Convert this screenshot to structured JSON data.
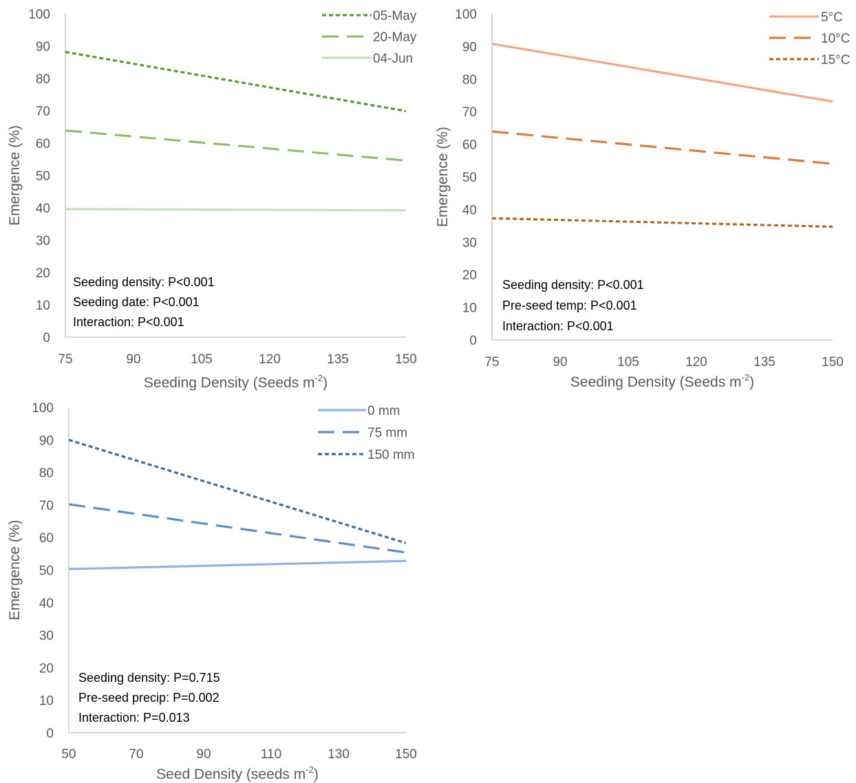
{
  "chart_data": [
    {
      "type": "line",
      "title": "",
      "xlabel_main": "Seeding Density (Seeds m",
      "xlabel_sup": "-2",
      "xlabel_tail": ")",
      "ylabel": "Emergence (%)",
      "xlim": [
        75,
        150
      ],
      "ylim": [
        0,
        100
      ],
      "xticks": [
        "75",
        "90",
        "105",
        "120",
        "135",
        "150"
      ],
      "yticks": [
        "0",
        "10",
        "20",
        "30",
        "40",
        "50",
        "60",
        "70",
        "80",
        "90",
        "100"
      ],
      "grid": false,
      "legend": "top-right",
      "series": [
        {
          "name": "05-May",
          "x": [
            75,
            150
          ],
          "values": [
            88.2,
            69.9
          ],
          "color": "#5b9a2e",
          "dash": "dot"
        },
        {
          "name": "20-May",
          "x": [
            75,
            150
          ],
          "values": [
            63.9,
            54.6
          ],
          "color": "#8fbf6a",
          "dash": "dash"
        },
        {
          "name": "04-Jun",
          "x": [
            75,
            150
          ],
          "values": [
            39.6,
            39.2
          ],
          "color": "#c5e0b4",
          "dash": "solid"
        }
      ],
      "annotations": [
        "Seeding density: P<0.001",
        "Seeding date: P<0.001",
        "Interaction: P<0.001"
      ]
    },
    {
      "type": "line",
      "title": "",
      "xlabel_main": "Seeding Density (Seeds m",
      "xlabel_sup": "-2",
      "xlabel_tail": ")",
      "ylabel": "Emergence (%)",
      "xlim": [
        75,
        150
      ],
      "ylim": [
        0,
        100
      ],
      "xticks": [
        "75",
        "90",
        "105",
        "120",
        "135",
        "150"
      ],
      "yticks": [
        "0",
        "10",
        "20",
        "30",
        "40",
        "50",
        "60",
        "70",
        "80",
        "90",
        "100"
      ],
      "grid": false,
      "legend": "top-right",
      "series": [
        {
          "name": "5°C",
          "x": [
            75,
            150
          ],
          "values": [
            90.8,
            73.1
          ],
          "color": "#f4a582",
          "dash": "solid"
        },
        {
          "name": "10°C",
          "x": [
            75,
            150
          ],
          "values": [
            63.9,
            54.0
          ],
          "color": "#e07b39",
          "dash": "dash"
        },
        {
          "name": "15°C",
          "x": [
            75,
            150
          ],
          "values": [
            37.3,
            34.7
          ],
          "color": "#b5651d",
          "dash": "dot"
        }
      ],
      "annotations": [
        "Seeding density: P<0.001",
        "Pre-seed temp: P<0.001",
        "Interaction: P<0.001"
      ]
    },
    {
      "type": "line",
      "title": "",
      "xlabel_main": "Seed Density (seeds m",
      "xlabel_sup": "-2",
      "xlabel_tail": ")",
      "ylabel": "Emergence (%)",
      "xlim": [
        50,
        150
      ],
      "ylim": [
        0,
        100
      ],
      "xticks": [
        "50",
        "70",
        "90",
        "110",
        "130",
        "150"
      ],
      "yticks": [
        "0",
        "10",
        "20",
        "30",
        "40",
        "50",
        "60",
        "70",
        "80",
        "90",
        "100"
      ],
      "grid": false,
      "legend": "top-right",
      "series": [
        {
          "name": "0 mm",
          "x": [
            50,
            150
          ],
          "values": [
            50.3,
            52.8
          ],
          "color": "#8db3e2",
          "dash": "solid"
        },
        {
          "name": "75 mm",
          "x": [
            50,
            150
          ],
          "values": [
            70.2,
            55.4
          ],
          "color": "#5b8fc9",
          "dash": "dash"
        },
        {
          "name": "150 mm",
          "x": [
            50,
            150
          ],
          "values": [
            90.0,
            58.3
          ],
          "color": "#3a6ea5",
          "dash": "dot"
        }
      ],
      "annotations": [
        "Seeding density: P=0.715",
        "Pre-seed precip: P=0.002",
        "Interaction: P=0.013"
      ]
    }
  ]
}
